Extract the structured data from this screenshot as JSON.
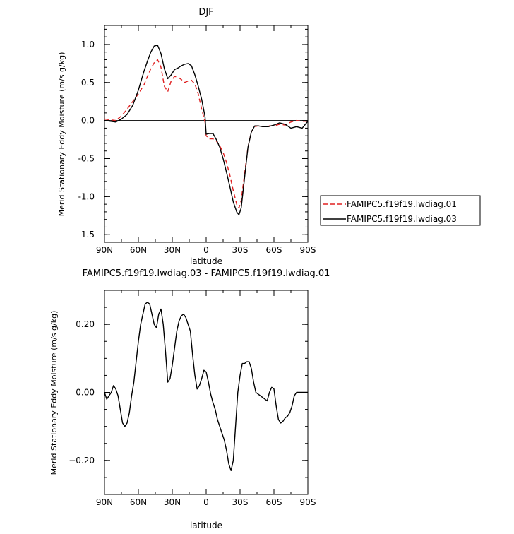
{
  "chart_data": [
    {
      "type": "line",
      "title": "DJF",
      "xlabel": "latitude",
      "ylabel": "Merid Stationary Eddy Moisture (m/s g/kg)",
      "xlim": [
        90,
        -90
      ],
      "ylim": [
        -1.6,
        1.25
      ],
      "x_ticks": [
        {
          "value": 90,
          "label": "90N"
        },
        {
          "value": 60,
          "label": "60N"
        },
        {
          "value": 30,
          "label": "30N"
        },
        {
          "value": 0,
          "label": "0"
        },
        {
          "value": -30,
          "label": "30S"
        },
        {
          "value": -60,
          "label": "60S"
        },
        {
          "value": -90,
          "label": "90S"
        }
      ],
      "y_ticks": [
        {
          "value": 1.0,
          "label": "1.0"
        },
        {
          "value": 0.5,
          "label": "0.5"
        },
        {
          "value": 0.0,
          "label": "0.0"
        },
        {
          "value": -0.5,
          "label": "-0.5"
        },
        {
          "value": -1.0,
          "label": "-1.0"
        },
        {
          "value": -1.5,
          "label": "-1.5"
        }
      ],
      "legend_position": "outside-right",
      "series": [
        {
          "name": "FAMIPC5.f19f19.lwdiag.01",
          "color": "#e02020",
          "dash": "dashed",
          "x": [
            90,
            85,
            80,
            75,
            70,
            65,
            60,
            55,
            52,
            49,
            46,
            43,
            40,
            37,
            34,
            31,
            28,
            25,
            22,
            19,
            16,
            13,
            10,
            7,
            4,
            1,
            0,
            -3,
            -6,
            -9,
            -12,
            -15,
            -18,
            -21,
            -24,
            -27,
            -29,
            -31,
            -34,
            -37,
            -40,
            -43,
            -46,
            -50,
            -55,
            -60,
            -65,
            -70,
            -75,
            -80,
            -85,
            -90
          ],
          "y": [
            0.02,
            0.01,
            0.0,
            0.06,
            0.15,
            0.25,
            0.35,
            0.47,
            0.58,
            0.68,
            0.76,
            0.8,
            0.7,
            0.45,
            0.38,
            0.52,
            0.58,
            0.57,
            0.54,
            0.5,
            0.52,
            0.53,
            0.48,
            0.35,
            0.15,
            -0.02,
            -0.2,
            -0.24,
            -0.24,
            -0.27,
            -0.33,
            -0.42,
            -0.55,
            -0.72,
            -0.92,
            -1.1,
            -1.15,
            -1.05,
            -0.7,
            -0.35,
            -0.15,
            -0.08,
            -0.07,
            -0.08,
            -0.07,
            -0.07,
            -0.05,
            -0.06,
            -0.02,
            0.0,
            -0.01,
            -0.01
          ]
        },
        {
          "name": "FAMIPC5.f19f19.lwdiag.03",
          "color": "#000000",
          "dash": "solid",
          "x": [
            90,
            85,
            80,
            75,
            70,
            65,
            60,
            55,
            52,
            49,
            46,
            43,
            40,
            37,
            34,
            31,
            28,
            25,
            22,
            19,
            16,
            13,
            10,
            7,
            4,
            1,
            0,
            -3,
            -6,
            -9,
            -12,
            -15,
            -18,
            -21,
            -24,
            -27,
            -29,
            -31,
            -34,
            -37,
            -40,
            -43,
            -46,
            -50,
            -55,
            -60,
            -65,
            -70,
            -75,
            -80,
            -85,
            -90
          ],
          "y": [
            0.0,
            -0.01,
            -0.02,
            0.02,
            0.08,
            0.2,
            0.4,
            0.65,
            0.78,
            0.9,
            0.98,
            0.99,
            0.88,
            0.68,
            0.55,
            0.6,
            0.67,
            0.69,
            0.72,
            0.74,
            0.75,
            0.72,
            0.6,
            0.45,
            0.28,
            0.05,
            -0.18,
            -0.17,
            -0.17,
            -0.25,
            -0.35,
            -0.5,
            -0.68,
            -0.87,
            -1.07,
            -1.2,
            -1.24,
            -1.15,
            -0.75,
            -0.35,
            -0.15,
            -0.07,
            -0.07,
            -0.08,
            -0.08,
            -0.06,
            -0.03,
            -0.05,
            -0.1,
            -0.08,
            -0.1,
            -0.01
          ]
        }
      ]
    },
    {
      "type": "line",
      "title": "FAMIPC5.f19f19.lwdiag.03 - FAMIPC5.f19f19.lwdiag.01",
      "xlabel": "latitude",
      "ylabel": "Merid Stationary Eddy Moisture (m/s g/kg)",
      "xlim": [
        90,
        -90
      ],
      "ylim": [
        -0.3,
        0.3
      ],
      "x_ticks": [
        {
          "value": 90,
          "label": "90N"
        },
        {
          "value": 60,
          "label": "60N"
        },
        {
          "value": 30,
          "label": "30N"
        },
        {
          "value": 0,
          "label": "0"
        },
        {
          "value": -30,
          "label": "30S"
        },
        {
          "value": -60,
          "label": "60S"
        },
        {
          "value": -90,
          "label": "90S"
        }
      ],
      "y_ticks": [
        {
          "value": 0.2,
          "label": "0.20"
        },
        {
          "value": 0.0,
          "label": "0.00"
        },
        {
          "value": -0.2,
          "label": "−0.20"
        }
      ],
      "series": [
        {
          "color": "#000000",
          "dash": "solid",
          "x": [
            90,
            88,
            86,
            84,
            82,
            80,
            78,
            76,
            74,
            72,
            70,
            68,
            66,
            64,
            62,
            60,
            58,
            56,
            54,
            52,
            50,
            48,
            46,
            44,
            42,
            40,
            38,
            36,
            34,
            32,
            30,
            28,
            26,
            24,
            22,
            20,
            18,
            16,
            14,
            12,
            10,
            8,
            6,
            4,
            2,
            0,
            -2,
            -4,
            -6,
            -8,
            -10,
            -12,
            -14,
            -16,
            -18,
            -20,
            -22,
            -24,
            -26,
            -28,
            -30,
            -32,
            -34,
            -36,
            -38,
            -40,
            -42,
            -44,
            -46,
            -48,
            -50,
            -52,
            -54,
            -56,
            -58,
            -60,
            -62,
            -64,
            -66,
            -68,
            -70,
            -72,
            -74,
            -76,
            -78,
            -80,
            -82,
            -84,
            -86,
            -88,
            -90
          ],
          "y": [
            0.0,
            -0.02,
            -0.01,
            0.0,
            0.02,
            0.01,
            -0.01,
            -0.05,
            -0.09,
            -0.1,
            -0.09,
            -0.06,
            -0.01,
            0.03,
            0.09,
            0.15,
            0.2,
            0.23,
            0.26,
            0.265,
            0.26,
            0.23,
            0.2,
            0.19,
            0.23,
            0.245,
            0.2,
            0.12,
            0.03,
            0.04,
            0.08,
            0.13,
            0.18,
            0.21,
            0.225,
            0.23,
            0.22,
            0.2,
            0.18,
            0.11,
            0.05,
            0.01,
            0.02,
            0.04,
            0.065,
            0.06,
            0.03,
            -0.005,
            -0.03,
            -0.05,
            -0.08,
            -0.1,
            -0.12,
            -0.14,
            -0.17,
            -0.21,
            -0.23,
            -0.2,
            -0.1,
            0.0,
            0.05,
            0.085,
            0.085,
            0.09,
            0.09,
            0.07,
            0.03,
            0.0,
            -0.005,
            -0.01,
            -0.015,
            -0.02,
            -0.025,
            0.0,
            0.015,
            0.01,
            -0.04,
            -0.08,
            -0.09,
            -0.085,
            -0.075,
            -0.07,
            -0.06,
            -0.04,
            -0.01,
            0.0,
            0.0,
            0.0,
            0.0,
            0.0,
            0.0
          ]
        }
      ]
    }
  ]
}
